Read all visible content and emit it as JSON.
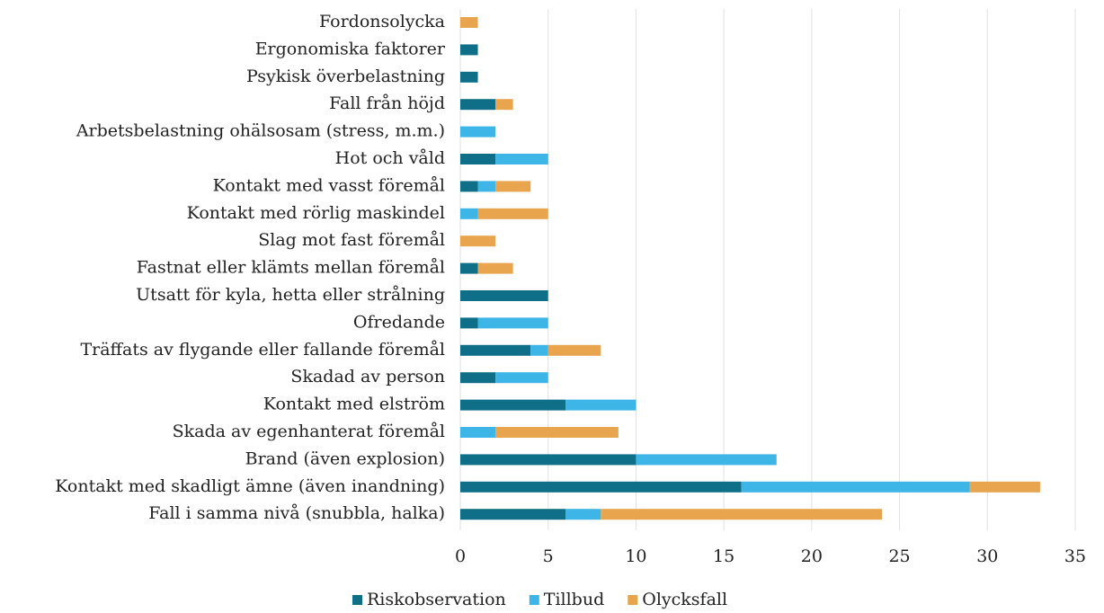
{
  "chart_data": {
    "type": "stacked_barh",
    "categories": [
      "Fordonsolycka",
      "Ergonomiska faktorer",
      "Psykisk överbelastning",
      "Fall från höjd",
      "Arbetsbelastning ohälsosam (stress, m.m.)",
      "Hot och våld",
      "Kontakt med vasst föremål",
      "Kontakt med rörlig maskindel",
      "Slag mot fast föremål",
      "Fastnat eller klämts mellan föremål",
      "Utsatt för kyla, hetta eller strålning",
      "Ofredande",
      "Träffats av flygande eller fallande föremål",
      "Skadad av person",
      "Kontakt med elström",
      "Skada av egenhanterat föremål",
      "Brand (även explosion)",
      "Kontakt med skadligt ämne (även inandning)",
      "Fall i samma nivå (snubbla, halka)"
    ],
    "series": [
      {
        "name": "Riskobservation",
        "color": "#0f6f89",
        "values": [
          0,
          1,
          1,
          2,
          0,
          2,
          1,
          0,
          0,
          1,
          5,
          1,
          4,
          2,
          6,
          0,
          10,
          16,
          6
        ]
      },
      {
        "name": "Tillbud",
        "color": "#3db5e6",
        "values": [
          0,
          0,
          0,
          0,
          2,
          3,
          1,
          1,
          0,
          0,
          0,
          4,
          1,
          3,
          4,
          2,
          8,
          13,
          2
        ]
      },
      {
        "name": "Olycksfall",
        "color": "#e9a54e",
        "values": [
          1,
          0,
          0,
          1,
          0,
          0,
          2,
          4,
          2,
          2,
          0,
          0,
          3,
          0,
          0,
          7,
          0,
          4,
          16
        ]
      }
    ],
    "xlim": [
      0,
      35
    ],
    "xticks": [
      0,
      5,
      10,
      15,
      20,
      25,
      30,
      35
    ],
    "grid": true,
    "legend": "bottom"
  }
}
